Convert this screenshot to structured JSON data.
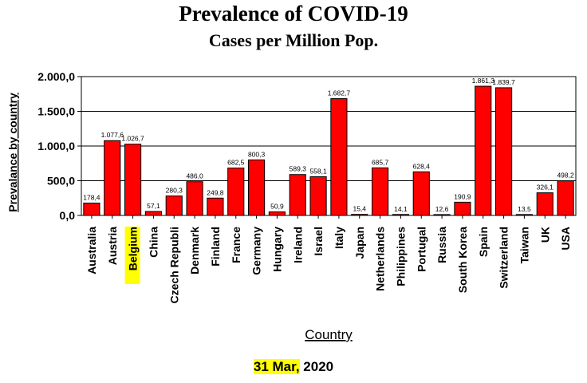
{
  "chart_data": {
    "type": "bar",
    "title": "Prevalence of COVID-19",
    "subtitle": "Cases per Million Pop.",
    "xlabel": "Country",
    "ylabel": "Prevalance by country",
    "ylim": [
      0,
      2000
    ],
    "yticks": [
      "0,0",
      "500,0",
      "1.000,0",
      "1.500,0",
      "2.000,0"
    ],
    "ytick_values": [
      0,
      500,
      1000,
      1500,
      2000
    ],
    "grid": true,
    "highlight_category": "Belgium",
    "highlight_color": "#ffff00",
    "bar_color": "#ff0000",
    "categories": [
      "Australia",
      "Austria",
      "Belgium",
      "China",
      "Czech Republi",
      "Denmark",
      "Finland",
      "France",
      "Germany",
      "Hungary",
      "Ireland",
      "Israel",
      "Italy",
      "Japan",
      "Netherlands",
      "Philippines",
      "Portugal",
      "Russia",
      "South Korea",
      "Spain",
      "Switzerland",
      "Taiwan",
      "UK",
      "USA"
    ],
    "values": [
      178.4,
      1077.6,
      1026.7,
      57.1,
      280.3,
      486.0,
      249.8,
      682.5,
      800.3,
      50.9,
      589.3,
      558.1,
      1682.7,
      15.4,
      685.7,
      14.1,
      628.4,
      12.6,
      190.9,
      1861.3,
      1839.7,
      13.5,
      326.1,
      498.2
    ],
    "value_labels": [
      "178,4",
      "1.077,6",
      "1.026,7",
      "57,1",
      "280,3",
      "486,0",
      "249,8",
      "682,5",
      "800,3",
      "50,9",
      "589,3",
      "558,1",
      "1.682,7",
      "15,4",
      "685,7",
      "14,1",
      "628,4",
      "12,6",
      "190,9",
      "1.861,3",
      "1.839,7",
      "13,5",
      "326,1",
      "498,2"
    ]
  },
  "footer": {
    "date": "31 Mar,",
    "year": "2020"
  }
}
